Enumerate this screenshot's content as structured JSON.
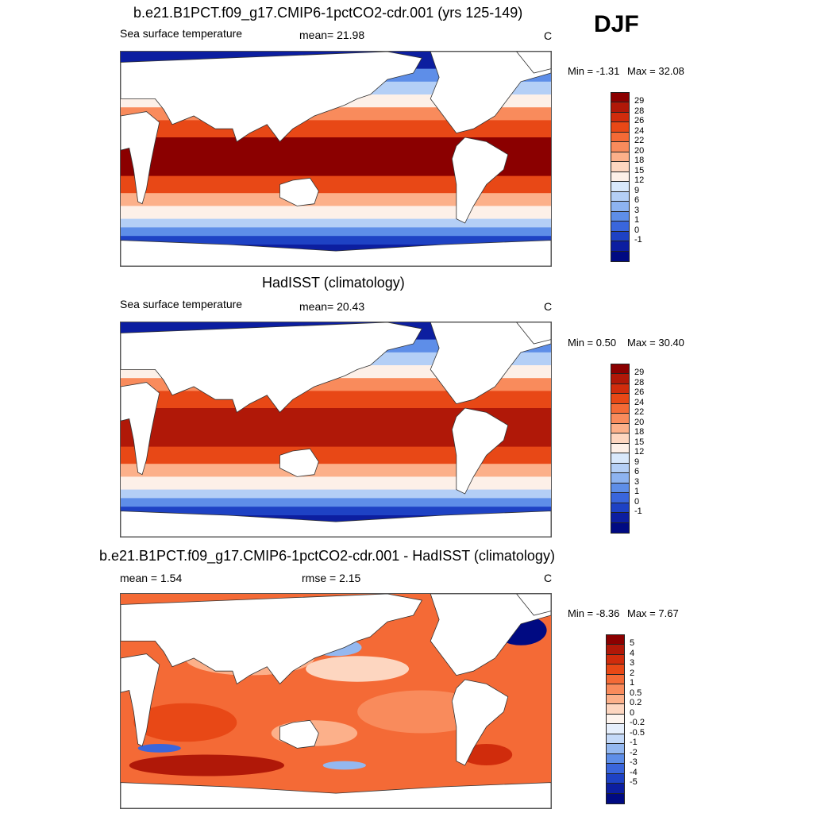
{
  "season": "DJF",
  "chart_data": [
    {
      "type": "heatmap",
      "title": "b.e21.B1PCT.f09_g17.CMIP6-1pctCO2-cdr.001 (yrs 125-149)",
      "left_label": "Sea surface temperature",
      "center_label": "mean=  21.98",
      "units": "C",
      "min_label": "Min =  -1.31",
      "max_label": "Max =  32.08",
      "min": -1.31,
      "max": 32.08,
      "mean": 21.98,
      "colorbar": {
        "levels": [
          "29",
          "28",
          "26",
          "24",
          "22",
          "20",
          "18",
          "15",
          "12",
          "9",
          "6",
          "3",
          "1",
          "0",
          "-1"
        ],
        "colors": [
          "#8b0000",
          "#b01808",
          "#d02c0c",
          "#e84816",
          "#f46a36",
          "#f98b5c",
          "#fcb08a",
          "#fdd6c0",
          "#fdf0e8",
          "#d8e8fb",
          "#b4cff6",
          "#8db3f0",
          "#5e8ee8",
          "#3a66dc",
          "#1e42c4",
          "#0c1ea0",
          "#000a82"
        ]
      }
    },
    {
      "type": "heatmap",
      "title": "HadISST (climatology)",
      "left_label": "Sea surface temperature",
      "center_label": "mean=  20.43",
      "units": "C",
      "min_label": "Min =   0.50",
      "max_label": "Max =  30.40",
      "min": 0.5,
      "max": 30.4,
      "mean": 20.43,
      "colorbar": {
        "levels": [
          "29",
          "28",
          "26",
          "24",
          "22",
          "20",
          "18",
          "15",
          "12",
          "9",
          "6",
          "3",
          "1",
          "0",
          "-1"
        ],
        "colors": [
          "#8b0000",
          "#b01808",
          "#d02c0c",
          "#e84816",
          "#f46a36",
          "#f98b5c",
          "#fcb08a",
          "#fdd6c0",
          "#fdf0e8",
          "#d8e8fb",
          "#b4cff6",
          "#8db3f0",
          "#5e8ee8",
          "#3a66dc",
          "#1e42c4",
          "#0c1ea0",
          "#000a82"
        ]
      }
    },
    {
      "type": "heatmap",
      "title": "b.e21.B1PCT.f09_g17.CMIP6-1pctCO2-cdr.001 - HadISST (climatology)",
      "left_label": "mean =   1.54",
      "center_label": "rmse =   2.15",
      "units": "C",
      "min_label": "Min =  -8.36",
      "max_label": "Max =   7.67",
      "min": -8.36,
      "max": 7.67,
      "mean": 1.54,
      "rmse": 2.15,
      "colorbar": {
        "levels": [
          "5",
          "4",
          "3",
          "2",
          "1",
          "0.5",
          "0.2",
          "0",
          "-0.2",
          "-0.5",
          "-1",
          "-2",
          "-3",
          "-4",
          "-5"
        ],
        "colors": [
          "#8b0000",
          "#b01808",
          "#d02c0c",
          "#e84816",
          "#f46a36",
          "#f98b5c",
          "#fcb08a",
          "#fdd6c0",
          "#fdf4ee",
          "#e6effc",
          "#c4d9f8",
          "#94b8f0",
          "#5e8ee8",
          "#3a66dc",
          "#1e42c4",
          "#0c1ea0",
          "#000a82"
        ]
      }
    }
  ]
}
